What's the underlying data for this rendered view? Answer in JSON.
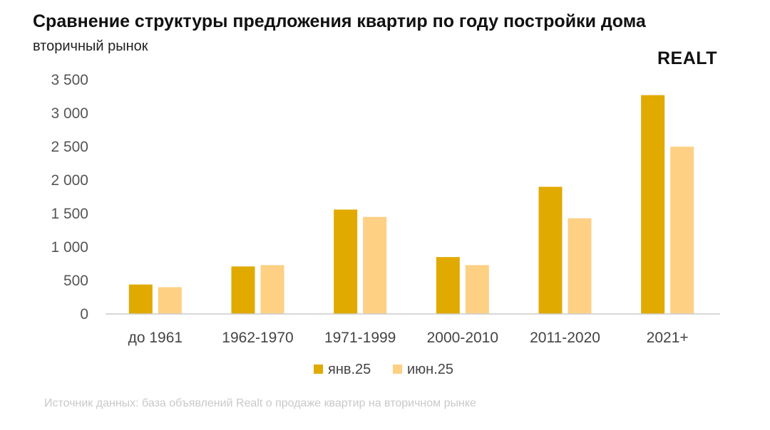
{
  "header": {
    "title": "Сравнение структуры предложения квартир по году постройки дома",
    "subtitle": "вторичный рынок"
  },
  "logo": {
    "text": "REALT"
  },
  "source": "Источник данных: база объявлений Realt о продаже квартир на вторичном рынке",
  "colors": {
    "series1": "#e0aa00",
    "series2": "#fdd084",
    "axis": "#cccccc"
  },
  "chart_data": {
    "type": "bar",
    "title": "Сравнение структуры предложения квартир по году постройки дома",
    "subtitle": "вторичный рынок",
    "xlabel": "",
    "ylabel": "",
    "ylim": [
      0,
      3500
    ],
    "yticks": [
      0,
      500,
      1000,
      1500,
      2000,
      2500,
      3000,
      3500
    ],
    "ytick_labels": [
      "0",
      "500",
      "1 000",
      "1 500",
      "2 000",
      "2 500",
      "3 000",
      "3 500"
    ],
    "categories": [
      "до 1961",
      "1962-1970",
      "1971-1999",
      "2000-2010",
      "2011-2020",
      "2021+"
    ],
    "series": [
      {
        "name": "янв.25",
        "color": "#e0aa00",
        "values": [
          440,
          710,
          1560,
          850,
          1900,
          3270
        ]
      },
      {
        "name": "июн.25",
        "color": "#fdd084",
        "values": [
          400,
          730,
          1450,
          730,
          1430,
          2500
        ]
      }
    ],
    "grid": false,
    "legend": "bottom-center"
  }
}
